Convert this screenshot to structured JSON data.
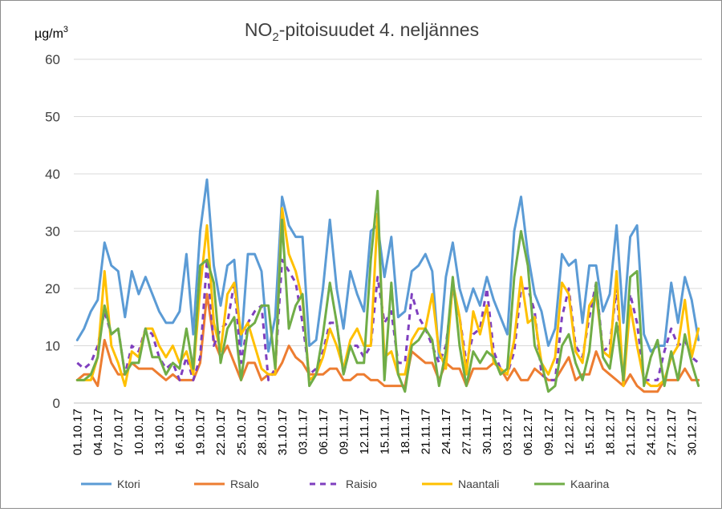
{
  "chart_data": {
    "type": "line",
    "title": "NO2-pitoisuudet 4. neljännes",
    "title_main": "NO",
    "title_sub": "2",
    "title_rest": "-pitoisuudet 4. neljännes",
    "ylabel": "µg/m3",
    "ylabel_main": "µg/m",
    "ylabel_sup": "3",
    "ylim": [
      0,
      60
    ],
    "yticks": [
      0,
      10,
      20,
      30,
      40,
      50,
      60
    ],
    "grid": true,
    "legend_position": "bottom",
    "x": [
      "01.10.17",
      "02.10.17",
      "03.10.17",
      "04.10.17",
      "05.10.17",
      "06.10.17",
      "07.10.17",
      "08.10.17",
      "09.10.17",
      "10.10.17",
      "11.10.17",
      "12.10.17",
      "13.10.17",
      "14.10.17",
      "15.10.17",
      "16.10.17",
      "17.10.17",
      "18.10.17",
      "19.10.17",
      "20.10.17",
      "21.10.17",
      "22.10.17",
      "23.10.17",
      "24.10.17",
      "25.10.17",
      "26.10.17",
      "27.10.17",
      "28.10.17",
      "29.10.17",
      "30.10.17",
      "31.10.17",
      "01.11.17",
      "02.11.17",
      "03.11.17",
      "04.11.17",
      "05.11.17",
      "06.11.17",
      "07.11.17",
      "08.11.17",
      "09.11.17",
      "10.11.17",
      "11.11.17",
      "12.11.17",
      "13.11.17",
      "14.11.17",
      "15.11.17",
      "16.11.17",
      "17.11.17",
      "18.11.17",
      "19.11.17",
      "20.11.17",
      "21.11.17",
      "22.11.17",
      "23.11.17",
      "24.11.17",
      "25.11.17",
      "26.11.17",
      "27.11.17",
      "28.11.17",
      "29.11.17",
      "30.11.17",
      "01.12.17",
      "02.12.17",
      "03.12.17",
      "04.12.17",
      "05.12.17",
      "06.12.17",
      "07.12.17",
      "08.12.17",
      "09.12.17",
      "10.12.17",
      "11.12.17",
      "12.12.17",
      "13.12.17",
      "14.12.17",
      "15.12.17",
      "16.12.17",
      "17.12.17",
      "18.12.17",
      "19.12.17",
      "20.12.17",
      "21.12.17",
      "22.12.17",
      "23.12.17",
      "24.12.17",
      "25.12.17",
      "26.12.17",
      "27.12.17",
      "28.12.17",
      "29.12.17",
      "30.12.17",
      "31.12.17"
    ],
    "x_tick_labels": [
      "01.10.17",
      "04.10.17",
      "07.10.17",
      "10.10.17",
      "13.10.17",
      "16.10.17",
      "19.10.17",
      "22.10.17",
      "25.10.17",
      "28.10.17",
      "31.10.17",
      "03.11.17",
      "06.11.17",
      "09.11.17",
      "12.11.17",
      "15.11.17",
      "18.11.17",
      "21.11.17",
      "24.11.17",
      "27.11.17",
      "30.11.17",
      "03.12.17",
      "06.12.17",
      "09.12.17",
      "12.12.17",
      "15.12.17",
      "18.12.17",
      "21.12.17",
      "24.12.17",
      "27.12.17",
      "30.12.17"
    ],
    "series": [
      {
        "name": "Ktori",
        "color": "#5B9BD5",
        "dash": false,
        "values": [
          11,
          13,
          16,
          18,
          28,
          24,
          23,
          15,
          23,
          19,
          22,
          19,
          16,
          14,
          14,
          16,
          26,
          12,
          30,
          39,
          24,
          17,
          24,
          25,
          10,
          26,
          26,
          23,
          9,
          15,
          36,
          31,
          29,
          29,
          10,
          11,
          20,
          32,
          20,
          13,
          23,
          19,
          16,
          30,
          31,
          22,
          29,
          15,
          16,
          23,
          24,
          26,
          23,
          8,
          22,
          28,
          20,
          16,
          20,
          17,
          22,
          18,
          15,
          12,
          30,
          36,
          26,
          19,
          16,
          10,
          13,
          26,
          24,
          25,
          14,
          24,
          24,
          16,
          19,
          31,
          14,
          29,
          31,
          12,
          9,
          10,
          10,
          21,
          14,
          22,
          18,
          11
        ]
      },
      {
        "name": "Rsalo",
        "color": "#ED7D31",
        "dash": false,
        "values": [
          4,
          5,
          5,
          3,
          11,
          7,
          5,
          5,
          7,
          6,
          6,
          6,
          5,
          4,
          5,
          4,
          4,
          4,
          7,
          19,
          11,
          8,
          10,
          7,
          4,
          7,
          7,
          4,
          5,
          5,
          7,
          10,
          8,
          7,
          5,
          5,
          5,
          6,
          6,
          4,
          4,
          5,
          5,
          4,
          4,
          3,
          3,
          3,
          3,
          9,
          8,
          7,
          7,
          4,
          7,
          6,
          6,
          3,
          6,
          6,
          6,
          7,
          6,
          4,
          6,
          4,
          4,
          6,
          5,
          4,
          4,
          6,
          8,
          4,
          5,
          5,
          9,
          6,
          5,
          4,
          3,
          5,
          3,
          2,
          2,
          2,
          4,
          4,
          4,
          6,
          4,
          4
        ]
      },
      {
        "name": "Raisio",
        "color": "#7F3FBF",
        "dash": true,
        "values": [
          7,
          6,
          7,
          10,
          16,
          12,
          13,
          5,
          10,
          9,
          13,
          12,
          8,
          6,
          7,
          4,
          8,
          4,
          8,
          25,
          10,
          13,
          14,
          21,
          7,
          14,
          16,
          17,
          4,
          6,
          25,
          23,
          21,
          14,
          5,
          6,
          9,
          14,
          14,
          5,
          10,
          10,
          8,
          10,
          22,
          14,
          16,
          7,
          7,
          19,
          15,
          13,
          10,
          7,
          10,
          20,
          15,
          7,
          12,
          13,
          20,
          9,
          6,
          5,
          9,
          20,
          20,
          16,
          5,
          4,
          4,
          15,
          20,
          10,
          8,
          15,
          21,
          9,
          10,
          20,
          3,
          19,
          14,
          4,
          4,
          4,
          9,
          13,
          10,
          11,
          8,
          7
        ]
      },
      {
        "name": "Naantali",
        "color": "#FFC000",
        "dash": false,
        "values": [
          4,
          4,
          4,
          8,
          23,
          10,
          7,
          3,
          9,
          8,
          13,
          13,
          10,
          8,
          10,
          7,
          9,
          5,
          20,
          31,
          14,
          9,
          19,
          21,
          12,
          14,
          10,
          6,
          5,
          5,
          34,
          26,
          23,
          18,
          4,
          5,
          8,
          13,
          10,
          6,
          11,
          13,
          10,
          10,
          33,
          8,
          9,
          5,
          5,
          11,
          13,
          13,
          19,
          9,
          6,
          21,
          15,
          5,
          16,
          12,
          17,
          7,
          6,
          5,
          11,
          22,
          14,
          15,
          7,
          5,
          8,
          21,
          19,
          9,
          7,
          17,
          19,
          9,
          8,
          23,
          3,
          17,
          10,
          4,
          3,
          3,
          4,
          8,
          10,
          18,
          8,
          13
        ]
      },
      {
        "name": "Kaarina",
        "color": "#70AD47",
        "dash": false,
        "values": [
          4,
          4,
          5,
          8,
          17,
          12,
          13,
          5,
          7,
          7,
          13,
          8,
          8,
          5,
          7,
          6,
          13,
          6,
          24,
          25,
          21,
          7,
          13,
          15,
          4,
          13,
          14,
          17,
          17,
          6,
          32,
          13,
          17,
          19,
          3,
          5,
          12,
          21,
          14,
          5,
          10,
          7,
          7,
          25,
          37,
          4,
          21,
          5,
          2,
          10,
          11,
          13,
          11,
          3,
          9,
          22,
          10,
          3,
          9,
          7,
          9,
          8,
          5,
          6,
          22,
          30,
          24,
          10,
          7,
          2,
          3,
          10,
          12,
          7,
          4,
          9,
          21,
          8,
          6,
          14,
          4,
          22,
          23,
          3,
          8,
          11,
          3,
          9,
          4,
          12,
          7,
          3
        ]
      }
    ]
  }
}
